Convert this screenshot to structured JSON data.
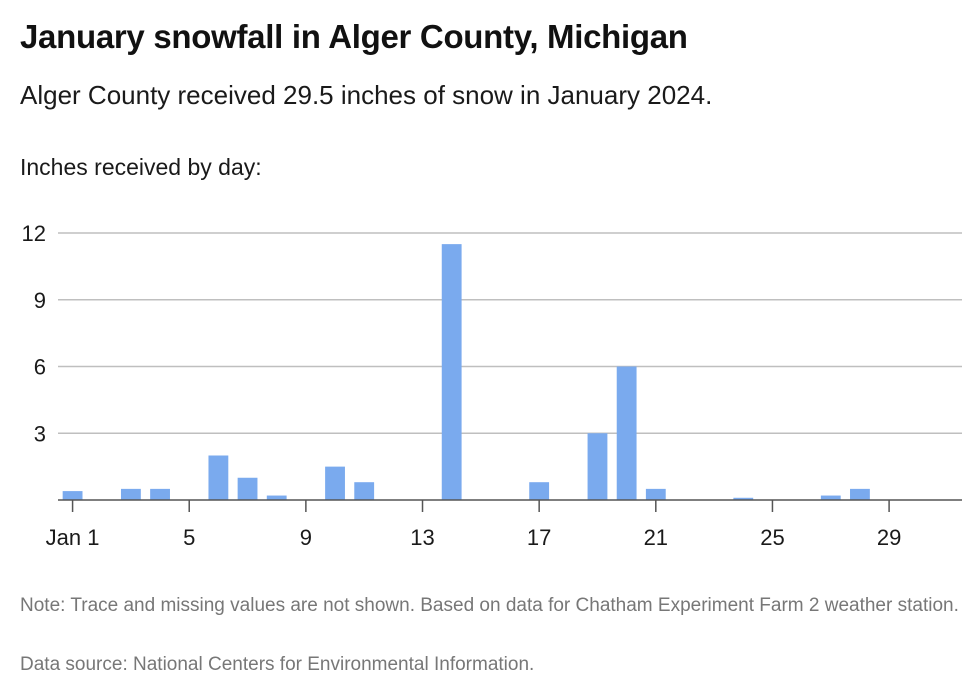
{
  "title": "January snowfall in Alger County, Michigan",
  "subtitle": "Alger County received 29.5 inches of snow in January 2024.",
  "y_axis_label": "Inches received by day:",
  "note": "Note: Trace and missing values are not shown. Based on data for Chatham Experiment Farm 2 weather station.",
  "source": "Data source: National Centers for Environmental Information.",
  "colors": {
    "bar": "#7aaaee",
    "grid": "#bfbfbf",
    "axis": "#555555"
  },
  "chart_data": {
    "type": "bar",
    "title": "January snowfall in Alger County, Michigan",
    "ylabel": "Inches received by day:",
    "ylim": [
      0,
      12
    ],
    "yticks": [
      3,
      6,
      9,
      12
    ],
    "xticks": [
      {
        "day": 1,
        "label": "Jan 1"
      },
      {
        "day": 5,
        "label": "5"
      },
      {
        "day": 9,
        "label": "9"
      },
      {
        "day": 13,
        "label": "13"
      },
      {
        "day": 17,
        "label": "17"
      },
      {
        "day": 21,
        "label": "21"
      },
      {
        "day": 25,
        "label": "25"
      },
      {
        "day": 29,
        "label": "29"
      }
    ],
    "grid": true,
    "categories": [
      "1",
      "2",
      "3",
      "4",
      "5",
      "6",
      "7",
      "8",
      "9",
      "10",
      "11",
      "12",
      "13",
      "14",
      "15",
      "16",
      "17",
      "18",
      "19",
      "20",
      "21",
      "22",
      "23",
      "24",
      "25",
      "26",
      "27",
      "28",
      "29",
      "30",
      "31"
    ],
    "values": [
      0.4,
      0,
      0.5,
      0.5,
      0,
      2.0,
      1.0,
      0.2,
      0,
      1.5,
      0.8,
      0,
      0,
      11.5,
      0,
      0,
      0.8,
      0,
      3.0,
      6.0,
      0.5,
      0,
      0,
      0.1,
      0,
      0,
      0.2,
      0.5,
      0,
      0,
      0
    ]
  }
}
